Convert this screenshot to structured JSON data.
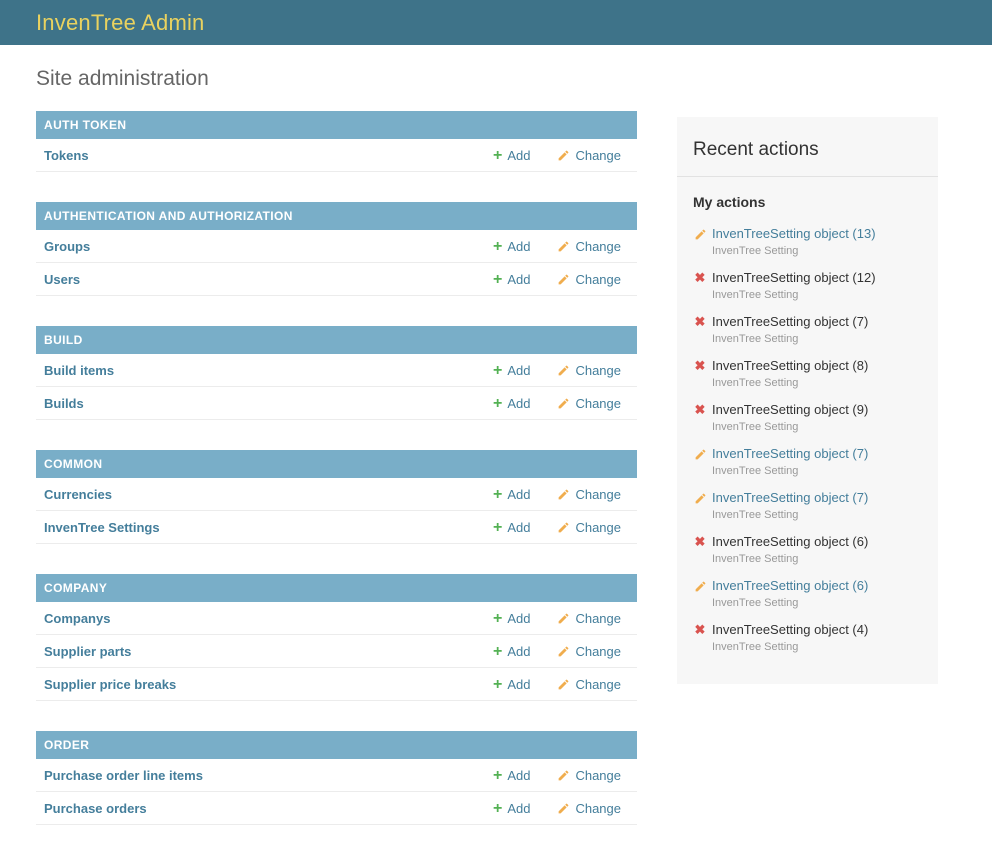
{
  "header": {
    "title": "InvenTree Admin"
  },
  "page_title": "Site administration",
  "actions": {
    "add_label": "Add",
    "change_label": "Change"
  },
  "icons": {
    "add_glyph": "+",
    "delete_glyph": "✖"
  },
  "colors": {
    "header_bg": "#3e7389",
    "header_title": "#e9d25f",
    "module_caption_bg": "#79aec8",
    "link": "#447e9b",
    "add_green": "#54b154",
    "pencil_gold": "#f0ad4e",
    "delete_red": "#d9534f",
    "panel_bg": "#f7f7f7"
  },
  "modules": [
    {
      "name": "AUTH TOKEN",
      "models": [
        "Tokens"
      ]
    },
    {
      "name": "AUTHENTICATION AND AUTHORIZATION",
      "models": [
        "Groups",
        "Users"
      ]
    },
    {
      "name": "BUILD",
      "models": [
        "Build items",
        "Builds"
      ]
    },
    {
      "name": "COMMON",
      "models": [
        "Currencies",
        "InvenTree Settings"
      ]
    },
    {
      "name": "COMPANY",
      "models": [
        "Companys",
        "Supplier parts",
        "Supplier price breaks"
      ]
    },
    {
      "name": "ORDER",
      "models": [
        "Purchase order line items",
        "Purchase orders"
      ]
    }
  ],
  "recent_actions": {
    "title": "Recent actions",
    "subtitle": "My actions",
    "items": [
      {
        "type": "change",
        "label": "InvenTreeSetting object (13)",
        "meta": "InvenTree Setting"
      },
      {
        "type": "delete",
        "label": "InvenTreeSetting object (12)",
        "meta": "InvenTree Setting"
      },
      {
        "type": "delete",
        "label": "InvenTreeSetting object (7)",
        "meta": "InvenTree Setting"
      },
      {
        "type": "delete",
        "label": "InvenTreeSetting object (8)",
        "meta": "InvenTree Setting"
      },
      {
        "type": "delete",
        "label": "InvenTreeSetting object (9)",
        "meta": "InvenTree Setting"
      },
      {
        "type": "change",
        "label": "InvenTreeSetting object (7)",
        "meta": "InvenTree Setting"
      },
      {
        "type": "change",
        "label": "InvenTreeSetting object (7)",
        "meta": "InvenTree Setting"
      },
      {
        "type": "delete",
        "label": "InvenTreeSetting object (6)",
        "meta": "InvenTree Setting"
      },
      {
        "type": "change",
        "label": "InvenTreeSetting object (6)",
        "meta": "InvenTree Setting"
      },
      {
        "type": "delete",
        "label": "InvenTreeSetting object (4)",
        "meta": "InvenTree Setting"
      }
    ]
  }
}
